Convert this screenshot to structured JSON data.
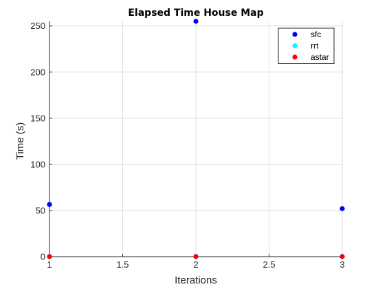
{
  "chart_data": {
    "type": "scatter",
    "title": "Elapsed Time House Map",
    "xlabel": "Iterations",
    "ylabel": "Time (s)",
    "xlim": [
      1,
      3
    ],
    "ylim": [
      0,
      255
    ],
    "xticks": [
      1,
      1.5,
      2,
      2.5,
      3
    ],
    "xtick_labels": [
      "1",
      "1.5",
      "2",
      "2.5",
      "3"
    ],
    "yticks": [
      0,
      50,
      100,
      150,
      200,
      250
    ],
    "ytick_labels": [
      "0",
      "50",
      "100",
      "150",
      "200",
      "250"
    ],
    "grid": true,
    "legend_position": "top-right",
    "series": [
      {
        "name": "sfc",
        "color": "#0000ff",
        "x": [
          1,
          2,
          3
        ],
        "y": [
          56.5,
          255,
          52
        ]
      },
      {
        "name": "rrt",
        "color": "#00ffff",
        "x": [
          1,
          2,
          3
        ],
        "y": [
          0.2,
          0.2,
          0.2
        ]
      },
      {
        "name": "astar",
        "color": "#ff0000",
        "x": [
          1,
          2,
          3
        ],
        "y": [
          0.1,
          0.1,
          0.1
        ]
      }
    ]
  }
}
